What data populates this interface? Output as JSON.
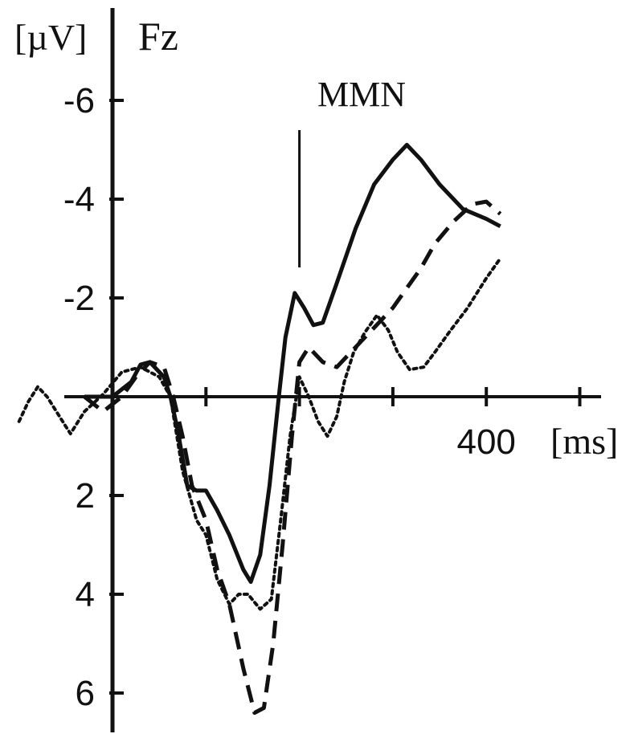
{
  "chart_data": {
    "type": "line",
    "channel_label": "Fz",
    "y_unit_label": "[µV]",
    "x_unit_label": "[ms]",
    "annotation": "MMN",
    "annotation_x": 200,
    "y_inverted": true,
    "xlim": [
      -100,
      500
    ],
    "ylim": [
      -6.8,
      6.7
    ],
    "x_ticks": [
      0,
      100,
      200,
      300,
      400,
      500
    ],
    "x_tick_labels": [
      {
        "x": 400,
        "label": "400"
      }
    ],
    "y_ticks": [
      -6,
      -4,
      -2,
      2,
      4,
      6
    ],
    "y_tick_labels": [
      "-6",
      "-4",
      "-2",
      "2",
      "4",
      "6"
    ],
    "series": [
      {
        "style": "solid",
        "color": "#111111",
        "points": [
          [
            -30,
            0.0
          ],
          [
            -20,
            0.0
          ],
          [
            0,
            0.0
          ],
          [
            20,
            -0.3
          ],
          [
            30,
            -0.65
          ],
          [
            40,
            -0.7
          ],
          [
            55,
            -0.4
          ],
          [
            62,
            0.0
          ],
          [
            70,
            0.7
          ],
          [
            80,
            1.8
          ],
          [
            90,
            1.9
          ],
          [
            100,
            1.9
          ],
          [
            112,
            2.3
          ],
          [
            125,
            2.8
          ],
          [
            140,
            3.5
          ],
          [
            148,
            3.75
          ],
          [
            158,
            3.2
          ],
          [
            168,
            1.8
          ],
          [
            178,
            0.0
          ],
          [
            185,
            -1.2
          ],
          [
            195,
            -2.1
          ],
          [
            205,
            -1.8
          ],
          [
            215,
            -1.45
          ],
          [
            225,
            -1.5
          ],
          [
            240,
            -2.3
          ],
          [
            260,
            -3.4
          ],
          [
            280,
            -4.3
          ],
          [
            300,
            -4.8
          ],
          [
            315,
            -5.1
          ],
          [
            330,
            -4.8
          ],
          [
            350,
            -4.3
          ],
          [
            375,
            -3.8
          ],
          [
            400,
            -3.6
          ],
          [
            415,
            -3.45
          ]
        ]
      },
      {
        "style": "dashed",
        "color": "#111111",
        "points": [
          [
            -30,
            0.0
          ],
          [
            -10,
            0.3
          ],
          [
            10,
            0.0
          ],
          [
            25,
            -0.4
          ],
          [
            40,
            -0.7
          ],
          [
            55,
            -0.6
          ],
          [
            65,
            0.0
          ],
          [
            75,
            0.8
          ],
          [
            85,
            1.8
          ],
          [
            100,
            2.5
          ],
          [
            112,
            3.5
          ],
          [
            125,
            4.2
          ],
          [
            140,
            5.5
          ],
          [
            152,
            6.4
          ],
          [
            162,
            6.3
          ],
          [
            172,
            5.0
          ],
          [
            182,
            3.0
          ],
          [
            192,
            0.8
          ],
          [
            200,
            -0.7
          ],
          [
            210,
            -1.0
          ],
          [
            225,
            -0.7
          ],
          [
            240,
            -0.6
          ],
          [
            255,
            -0.9
          ],
          [
            270,
            -1.2
          ],
          [
            285,
            -1.5
          ],
          [
            300,
            -1.8
          ],
          [
            315,
            -2.2
          ],
          [
            330,
            -2.6
          ],
          [
            345,
            -3.1
          ],
          [
            365,
            -3.55
          ],
          [
            385,
            -3.9
          ],
          [
            400,
            -3.95
          ],
          [
            415,
            -3.7
          ]
        ]
      },
      {
        "style": "dotted",
        "color": "#111111",
        "points": [
          [
            -100,
            0.5
          ],
          [
            -90,
            0.1
          ],
          [
            -80,
            -0.2
          ],
          [
            -70,
            0.0
          ],
          [
            -60,
            0.3
          ],
          [
            -50,
            0.6
          ],
          [
            -45,
            0.75
          ],
          [
            -30,
            0.3
          ],
          [
            -10,
            -0.05
          ],
          [
            10,
            -0.5
          ],
          [
            30,
            -0.6
          ],
          [
            50,
            -0.4
          ],
          [
            62,
            0.0
          ],
          [
            75,
            1.5
          ],
          [
            90,
            2.5
          ],
          [
            100,
            2.8
          ],
          [
            112,
            3.7
          ],
          [
            125,
            4.2
          ],
          [
            135,
            4.0
          ],
          [
            145,
            4.0
          ],
          [
            158,
            4.3
          ],
          [
            170,
            4.1
          ],
          [
            180,
            2.5
          ],
          [
            190,
            0.8
          ],
          [
            200,
            -0.4
          ],
          [
            210,
            0.0
          ],
          [
            220,
            0.5
          ],
          [
            230,
            0.8
          ],
          [
            240,
            0.4
          ],
          [
            248,
            -0.3
          ],
          [
            258,
            -0.9
          ],
          [
            270,
            -1.3
          ],
          [
            283,
            -1.65
          ],
          [
            295,
            -1.35
          ],
          [
            305,
            -0.9
          ],
          [
            318,
            -0.55
          ],
          [
            333,
            -0.6
          ],
          [
            345,
            -0.9
          ],
          [
            360,
            -1.3
          ],
          [
            380,
            -1.8
          ],
          [
            400,
            -2.4
          ],
          [
            415,
            -2.8
          ]
        ]
      }
    ]
  }
}
